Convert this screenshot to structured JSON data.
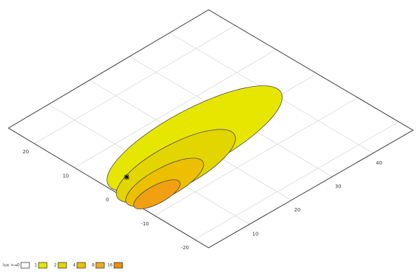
{
  "left_axis": {
    "labels": [
      "20",
      "10",
      "0",
      "-10",
      "-20"
    ]
  },
  "right_axis": {
    "labels": [
      "10",
      "20",
      "30",
      "40"
    ]
  },
  "legend": {
    "title": "lux >=",
    "levels": [
      "0",
      "1",
      "2",
      "4",
      "8",
      "16"
    ]
  }
}
